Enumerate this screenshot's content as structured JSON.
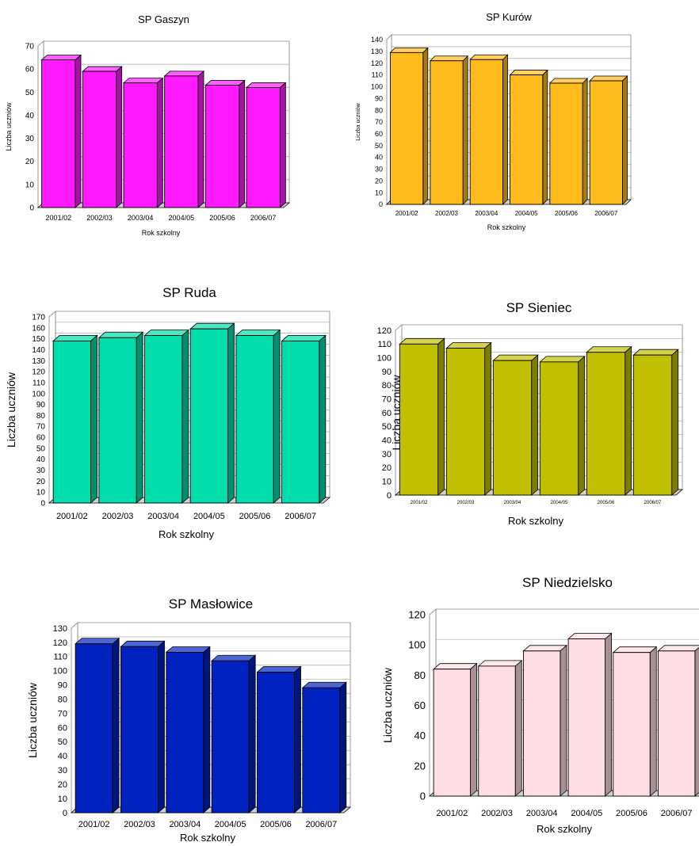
{
  "chart_data": [
    {
      "type": "bar",
      "title": "SP Gaszyn",
      "xlabel": "Rok szkolny",
      "ylabel": "Liczba uczniów",
      "categories": [
        "2001/02",
        "2002/03",
        "2003/04",
        "2004/05",
        "2005/06",
        "2006/07"
      ],
      "values": [
        64,
        59,
        54,
        57,
        53,
        52
      ],
      "ylim": [
        0,
        70
      ],
      "yticks": [
        "0",
        "10",
        "20",
        "30",
        "40",
        "50",
        "60",
        "70"
      ],
      "color": "#ff1aff",
      "grid": true
    },
    {
      "type": "bar",
      "title": "SP Kurów",
      "xlabel": "Rok szkolny",
      "ylabel": "Liczba uczniów",
      "categories": [
        "2001/02",
        "2002/03",
        "2003/04",
        "2004/05",
        "2005/06",
        "2006/07"
      ],
      "values": [
        129,
        122,
        123,
        110,
        103,
        105
      ],
      "ylim": [
        0,
        140
      ],
      "yticks": [
        "0",
        "10",
        "20",
        "30",
        "40",
        "50",
        "60",
        "70",
        "80",
        "90",
        "100",
        "110",
        "120",
        "130",
        "140"
      ],
      "color": "#ffbb1c",
      "grid": true
    },
    {
      "type": "bar",
      "title": "SP Ruda",
      "xlabel": "Rok szkolny",
      "ylabel": "Liczba uczniów",
      "categories": [
        "2001/02",
        "2002/03",
        "2003/04",
        "2004/05",
        "2005/06",
        "2006/07"
      ],
      "values": [
        148,
        151,
        153,
        159,
        153,
        148
      ],
      "ylim": [
        0,
        170
      ],
      "yticks": [
        "0",
        "10",
        "20",
        "30",
        "40",
        "50",
        "60",
        "70",
        "80",
        "90",
        "100",
        "110",
        "120",
        "130",
        "140",
        "150",
        "160",
        "170"
      ],
      "color": "#00ddaa",
      "grid": true
    },
    {
      "type": "bar",
      "title": "SP Sieniec",
      "xlabel": "Rok szkolny",
      "ylabel": "Liczba uczniów",
      "categories": [
        "2001/02",
        "2002/03",
        "2003/04",
        "2004/05",
        "2005/06",
        "2006/07"
      ],
      "values": [
        110,
        107,
        98,
        97,
        104,
        102
      ],
      "ylim": [
        0,
        120
      ],
      "yticks": [
        "0",
        "10",
        "20",
        "30",
        "40",
        "50",
        "60",
        "70",
        "80",
        "90",
        "100",
        "110",
        "120"
      ],
      "color": "#c0c000",
      "grid": true
    },
    {
      "type": "bar",
      "title": "SP Masłowice",
      "xlabel": "Rok szkolny",
      "ylabel": "Liczba uczniów",
      "categories": [
        "2001/02",
        "2002/03",
        "2003/04",
        "2004/05",
        "2005/06",
        "2006/07"
      ],
      "values": [
        119,
        117,
        113,
        107,
        99,
        88
      ],
      "ylim": [
        0,
        130
      ],
      "yticks": [
        "0",
        "10",
        "20",
        "30",
        "40",
        "50",
        "60",
        "70",
        "80",
        "90",
        "100",
        "110",
        "120",
        "130"
      ],
      "color": "#0022c0",
      "grid": true
    },
    {
      "type": "bar",
      "title": "SP Niedzielsko",
      "xlabel": "Rok szkolny",
      "ylabel": "Liczba uczniów",
      "categories": [
        "2001/02",
        "2002/03",
        "2003/04",
        "2004/05",
        "2005/06",
        "2006/07"
      ],
      "values": [
        84,
        86,
        96,
        104,
        95,
        96
      ],
      "ylim": [
        0,
        120
      ],
      "yticks": [
        "0",
        "20",
        "40",
        "60",
        "80",
        "100",
        "120"
      ],
      "color": "#ffdde4",
      "grid": true
    }
  ]
}
